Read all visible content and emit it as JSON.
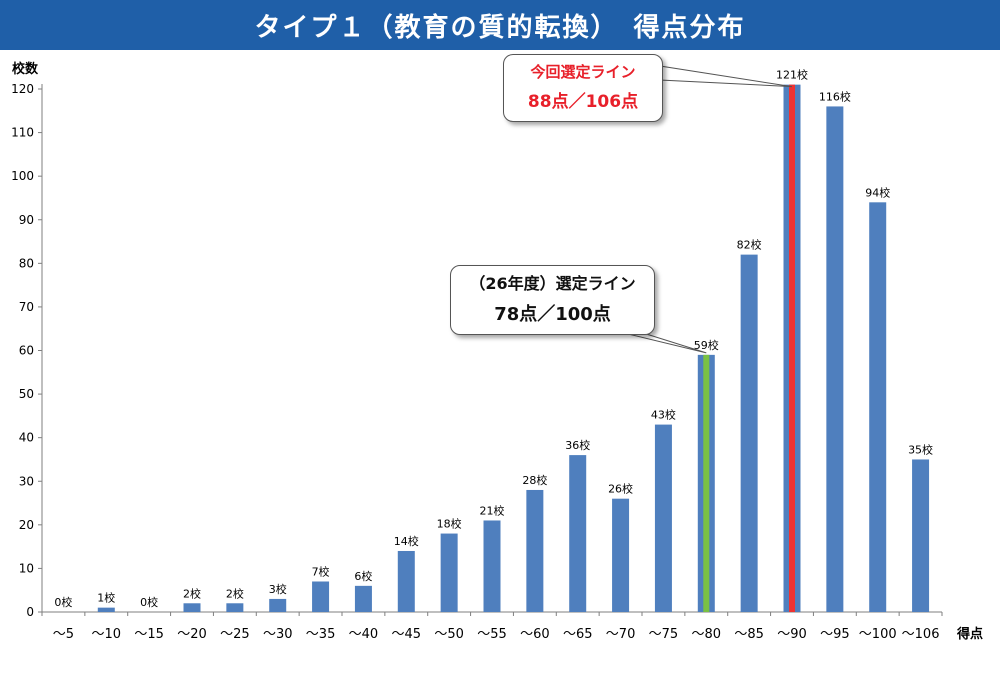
{
  "header": {
    "title": "タイプ１（教育の質的転換）　得点分布"
  },
  "colors": {
    "header_bg": "#1f5fa8",
    "bar": "#4f7fbe",
    "line_current": "#ee3333",
    "line_previous": "#7ac143",
    "callout_current_text": "#e8202a",
    "callout_previous_text": "#111111"
  },
  "callouts": {
    "current": {
      "line1": "今回選定ライン",
      "line2": "88点／106点"
    },
    "previous": {
      "line1": "（26年度）選定ライン",
      "line2": "78点／100点"
    }
  },
  "chart_data": {
    "type": "bar",
    "title": "タイプ１（教育の質的転換）　得点分布",
    "xlabel": "得点",
    "ylabel": "校数",
    "ylim": [
      0,
      120
    ],
    "yticks": [
      0,
      10,
      20,
      30,
      40,
      50,
      60,
      70,
      80,
      90,
      100,
      110,
      120
    ],
    "categories": [
      "～5",
      "～10",
      "～15",
      "～20",
      "～25",
      "～30",
      "～35",
      "～40",
      "～45",
      "～50",
      "～55",
      "～60",
      "～65",
      "～70",
      "～75",
      "～80",
      "～85",
      "～90",
      "～95",
      "～100",
      "～106"
    ],
    "values": [
      0,
      1,
      0,
      2,
      2,
      3,
      7,
      6,
      14,
      18,
      21,
      28,
      36,
      26,
      43,
      59,
      82,
      121,
      116,
      94,
      35
    ],
    "value_labels": [
      "0校",
      "1校",
      "0校",
      "2校",
      "2校",
      "3校",
      "7校",
      "6校",
      "14校",
      "18校",
      "21校",
      "28校",
      "36校",
      "26校",
      "43校",
      "59校",
      "82校",
      "121校",
      "116校",
      "94校",
      "35校"
    ],
    "grid": false,
    "legend": "none",
    "lines": [
      {
        "name": "今回選定ライン",
        "category": "～90",
        "value": 121
      },
      {
        "name": "（26年度）選定ライン",
        "category": "～80",
        "value": 59
      }
    ]
  }
}
